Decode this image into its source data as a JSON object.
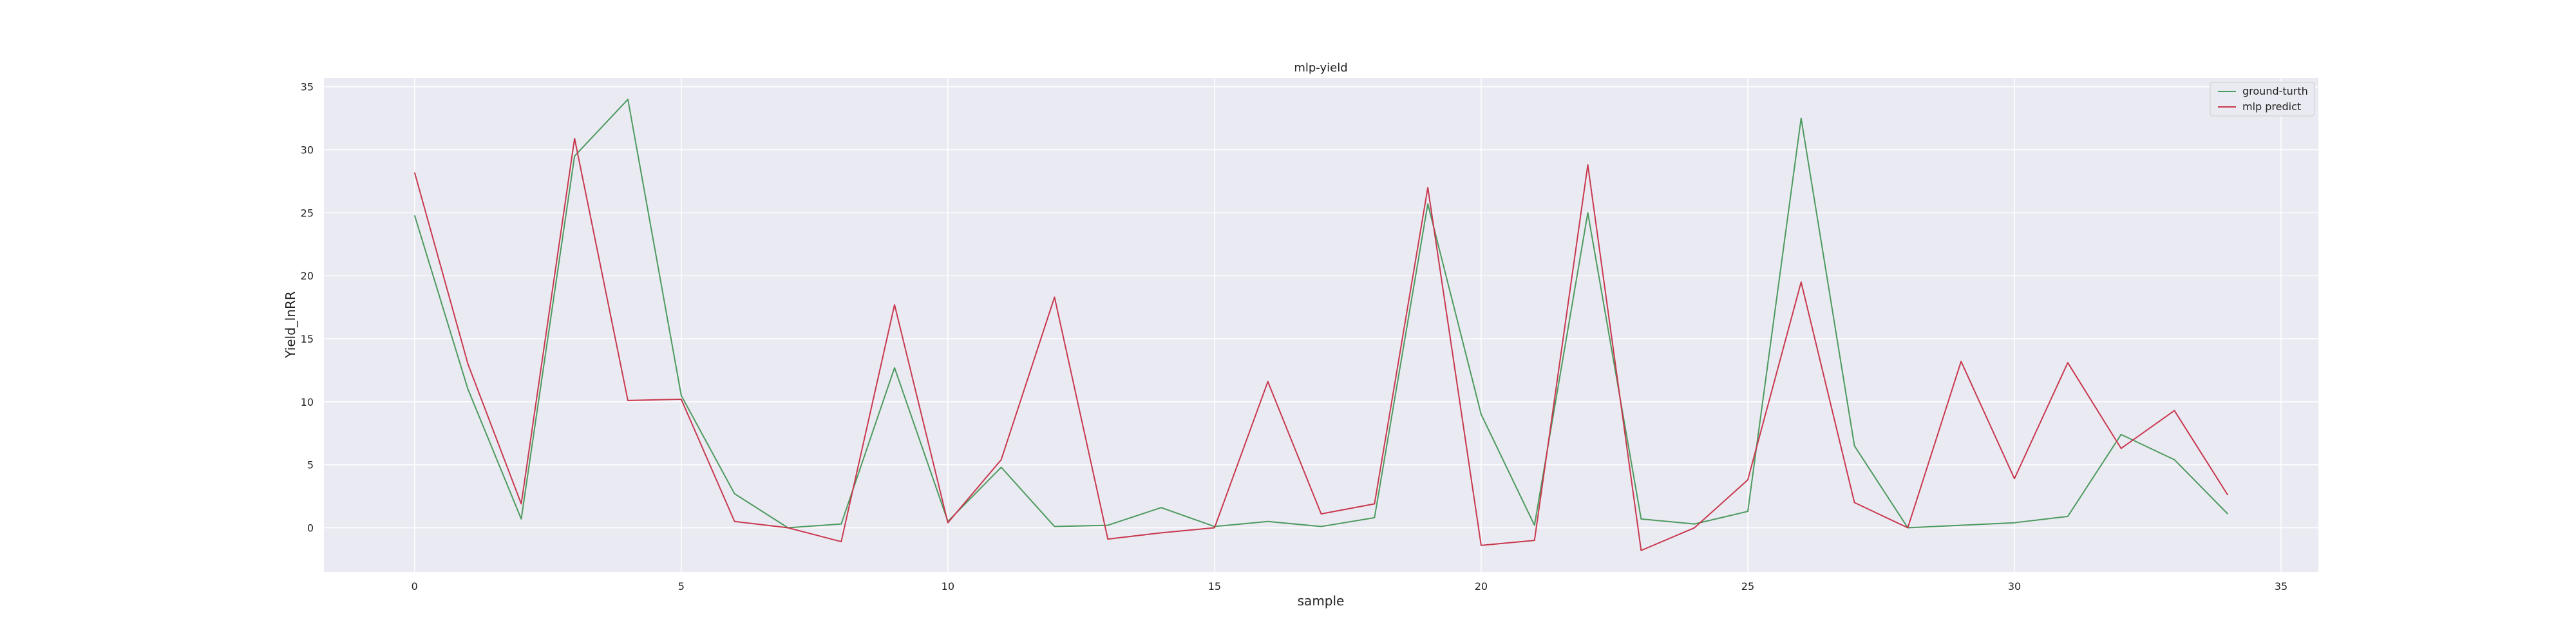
{
  "chart_data": {
    "type": "line",
    "title": "mlp-yield",
    "xlabel": "sample",
    "ylabel": "Yield_lnRR",
    "xlim": [
      -1.7,
      35.7
    ],
    "ylim": [
      -3.5,
      35.7
    ],
    "xticks": [
      0,
      5,
      10,
      15,
      20,
      25,
      30,
      35
    ],
    "yticks": [
      0,
      5,
      10,
      15,
      20,
      25,
      30,
      35
    ],
    "grid": true,
    "legend_position": "top-right",
    "x": [
      0,
      1,
      2,
      3,
      4,
      5,
      6,
      7,
      8,
      9,
      10,
      11,
      12,
      13,
      14,
      15,
      16,
      17,
      18,
      19,
      20,
      21,
      22,
      23,
      24,
      25,
      26,
      27,
      28,
      29,
      30,
      31,
      32,
      33,
      34
    ],
    "series": [
      {
        "name": "ground-turth",
        "color": "#4c9a5e",
        "values": [
          24.8,
          11.0,
          0.7,
          29.5,
          34.0,
          10.5,
          2.7,
          0.0,
          0.3,
          12.7,
          0.5,
          4.8,
          0.1,
          0.2,
          1.6,
          0.1,
          0.5,
          0.1,
          0.8,
          25.7,
          9.0,
          0.2,
          25.0,
          0.7,
          0.3,
          1.3,
          32.5,
          6.5,
          0.0,
          0.2,
          0.4,
          0.9,
          7.4,
          5.4,
          1.1
        ]
      },
      {
        "name": "mlp predict",
        "color": "#c8384e",
        "values": [
          28.2,
          13.0,
          1.9,
          30.9,
          10.1,
          10.2,
          0.5,
          0.0,
          -1.1,
          17.7,
          0.4,
          5.4,
          18.3,
          -0.9,
          -0.4,
          0.0,
          11.6,
          1.1,
          1.9,
          27.0,
          -1.4,
          -1.0,
          28.8,
          -1.8,
          0.0,
          3.8,
          19.5,
          2.0,
          0.0,
          13.2,
          3.9,
          13.1,
          6.3,
          9.3,
          2.6
        ]
      }
    ]
  },
  "style": {
    "plot_background": "#eaeaf2",
    "grid_color": "#ffffff",
    "text_color": "#222222"
  }
}
